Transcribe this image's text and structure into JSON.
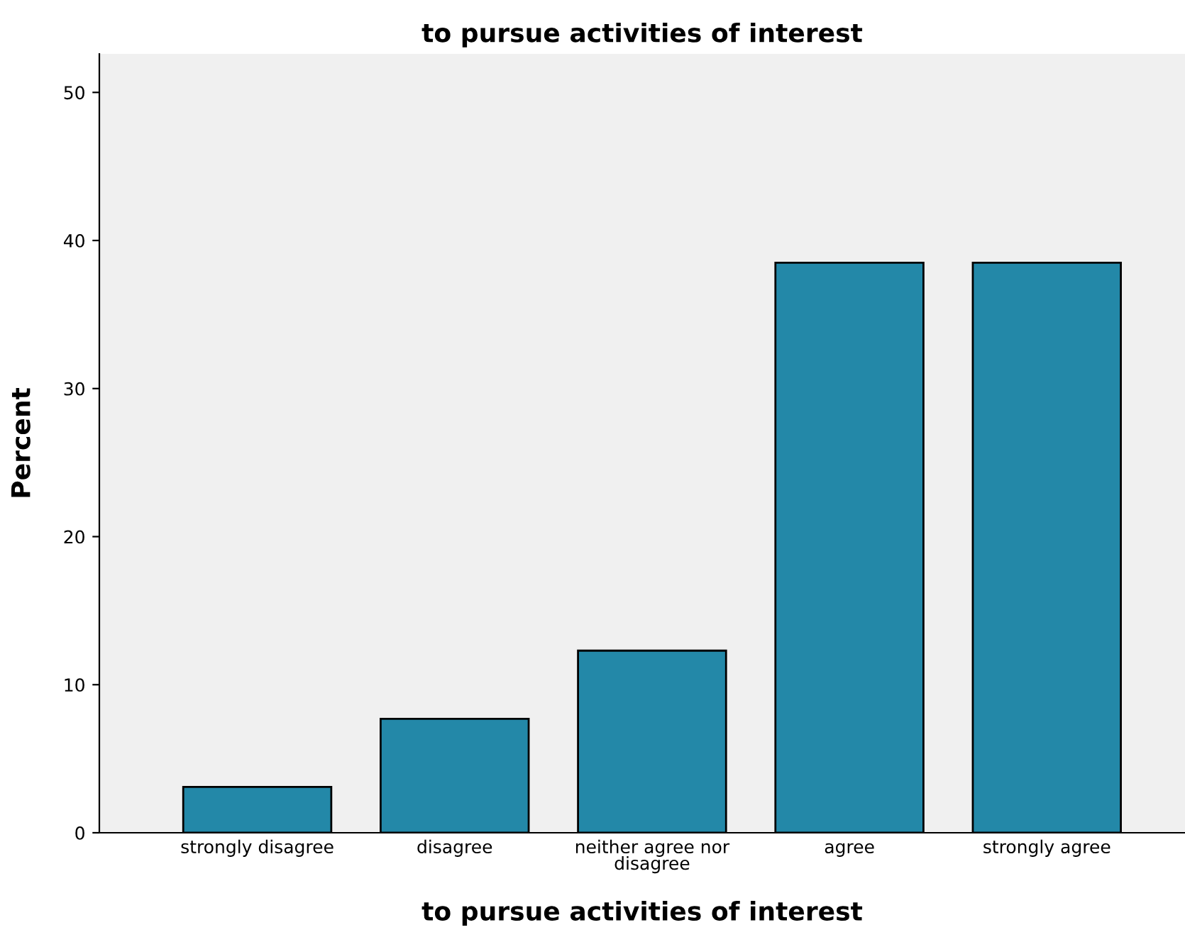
{
  "chart_data": {
    "type": "bar",
    "title": "to pursue activities of interest",
    "xlabel": "to pursue activities of interest",
    "ylabel": "Percent",
    "categories": [
      "strongly disagree",
      "disagree",
      "neither agree nor\ndisagree",
      "agree",
      "strongly agree"
    ],
    "values": [
      3.1,
      7.7,
      12.3,
      38.5,
      38.5
    ],
    "color": "#2388a8",
    "ylim": [
      0,
      52.6
    ],
    "yticks": [
      0,
      10,
      20,
      30,
      40,
      50
    ],
    "grid": false
  }
}
